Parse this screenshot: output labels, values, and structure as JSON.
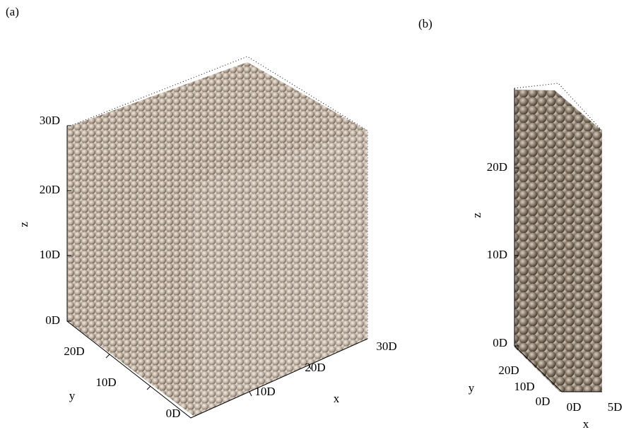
{
  "panels": [
    {
      "label": "(a)",
      "axes": {
        "x": {
          "label": "x",
          "ticks": [
            "10D",
            "20D",
            "30D"
          ]
        },
        "y": {
          "label": "y",
          "ticks": [
            "0D",
            "10D",
            "20D"
          ]
        },
        "z": {
          "label": "z",
          "ticks": [
            "0D",
            "10D",
            "20D",
            "30D"
          ]
        }
      }
    },
    {
      "label": "(b)",
      "axes": {
        "x": {
          "label": "x",
          "ticks": [
            "0D",
            "5D"
          ]
        },
        "y": {
          "label": "y",
          "ticks": [
            "0D",
            "10D",
            "20D"
          ]
        },
        "z": {
          "label": "z",
          "ticks": [
            "0D",
            "10D",
            "20D"
          ]
        }
      }
    }
  ]
}
